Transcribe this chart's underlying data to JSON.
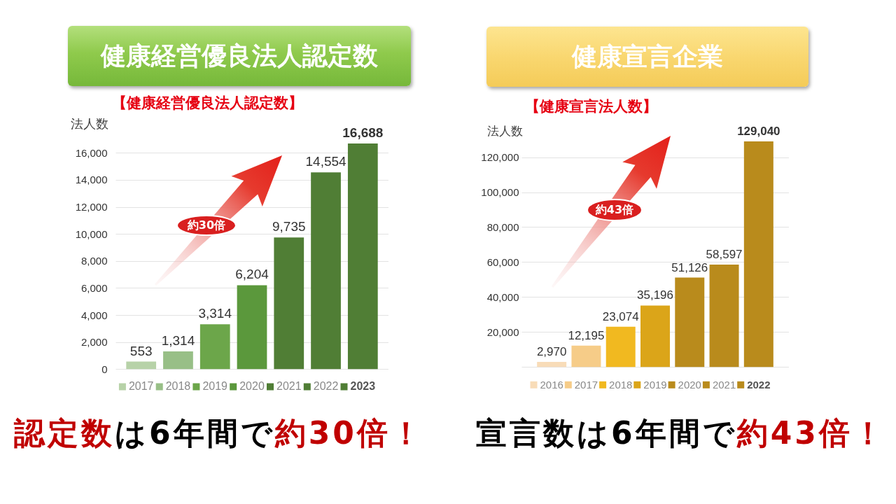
{
  "chart_data": [
    {
      "type": "bar",
      "title": "健康経営優良法人認定数",
      "subtitle": "【健康経営優良法人認定数】",
      "ylabel": "法人数",
      "categories": [
        "2017",
        "2018",
        "2019",
        "2020",
        "2021",
        "2022",
        "2023"
      ],
      "values": [
        553,
        1314,
        3314,
        6204,
        9735,
        14554,
        16688
      ],
      "value_labels": [
        "553",
        "1,314",
        "3,314",
        "6,204",
        "9,735",
        "14,554",
        "16,688"
      ],
      "colors": [
        "#b7d2a8",
        "#98bf87",
        "#6ca64a",
        "#5b983c",
        "#507e35",
        "#507e35",
        "#507e35"
      ],
      "ylim": [
        0,
        16688
      ],
      "yticks": [
        {
          "value": 0,
          "label": "0"
        },
        {
          "value": 2000,
          "label": "2,000"
        },
        {
          "value": 4000,
          "label": "4,000"
        },
        {
          "value": 6000,
          "label": "6,000"
        },
        {
          "value": 8000,
          "label": "8,000"
        },
        {
          "value": 10000,
          "label": "10,000"
        },
        {
          "value": 12000,
          "label": "12,000"
        },
        {
          "value": 14000,
          "label": "14,000"
        },
        {
          "value": 16000,
          "label": "16,000"
        }
      ],
      "grid": "y",
      "annotations": [
        "約30倍",
        "認定数",
        "は6年間で",
        "約30倍！"
      ]
    },
    {
      "type": "bar",
      "title": "健康宣言企業",
      "subtitle": "【健康宣言法人数】",
      "ylabel": "法人数",
      "categories": [
        "2016",
        "2017",
        "2018",
        "2019",
        "2020",
        "2021",
        "2022"
      ],
      "values": [
        2970,
        12195,
        23074,
        35196,
        51126,
        58597,
        129040
      ],
      "value_labels": [
        "2,970",
        "12,195",
        "23,074",
        "35,196",
        "51,126",
        "58,597",
        "129,040"
      ],
      "colors": [
        "#f8dcb8",
        "#f6cc88",
        "#f1b920",
        "#dba519",
        "#b98b1c",
        "#b98b1c",
        "#b98b1c"
      ],
      "ylim": [
        0,
        129040
      ],
      "yticks": [
        {
          "value": 0,
          "label": null
        },
        {
          "value": 20000,
          "label": "20,000"
        },
        {
          "value": 40000,
          "label": "40,000"
        },
        {
          "value": 60000,
          "label": "60,000"
        },
        {
          "value": 80000,
          "label": "80,000"
        },
        {
          "value": 100000,
          "label": "100,000"
        },
        {
          "value": 120000,
          "label": "120,000"
        }
      ],
      "grid": "y",
      "annotations": [
        "約43倍",
        "宣言数は6年間で",
        "約43倍！"
      ]
    }
  ]
}
